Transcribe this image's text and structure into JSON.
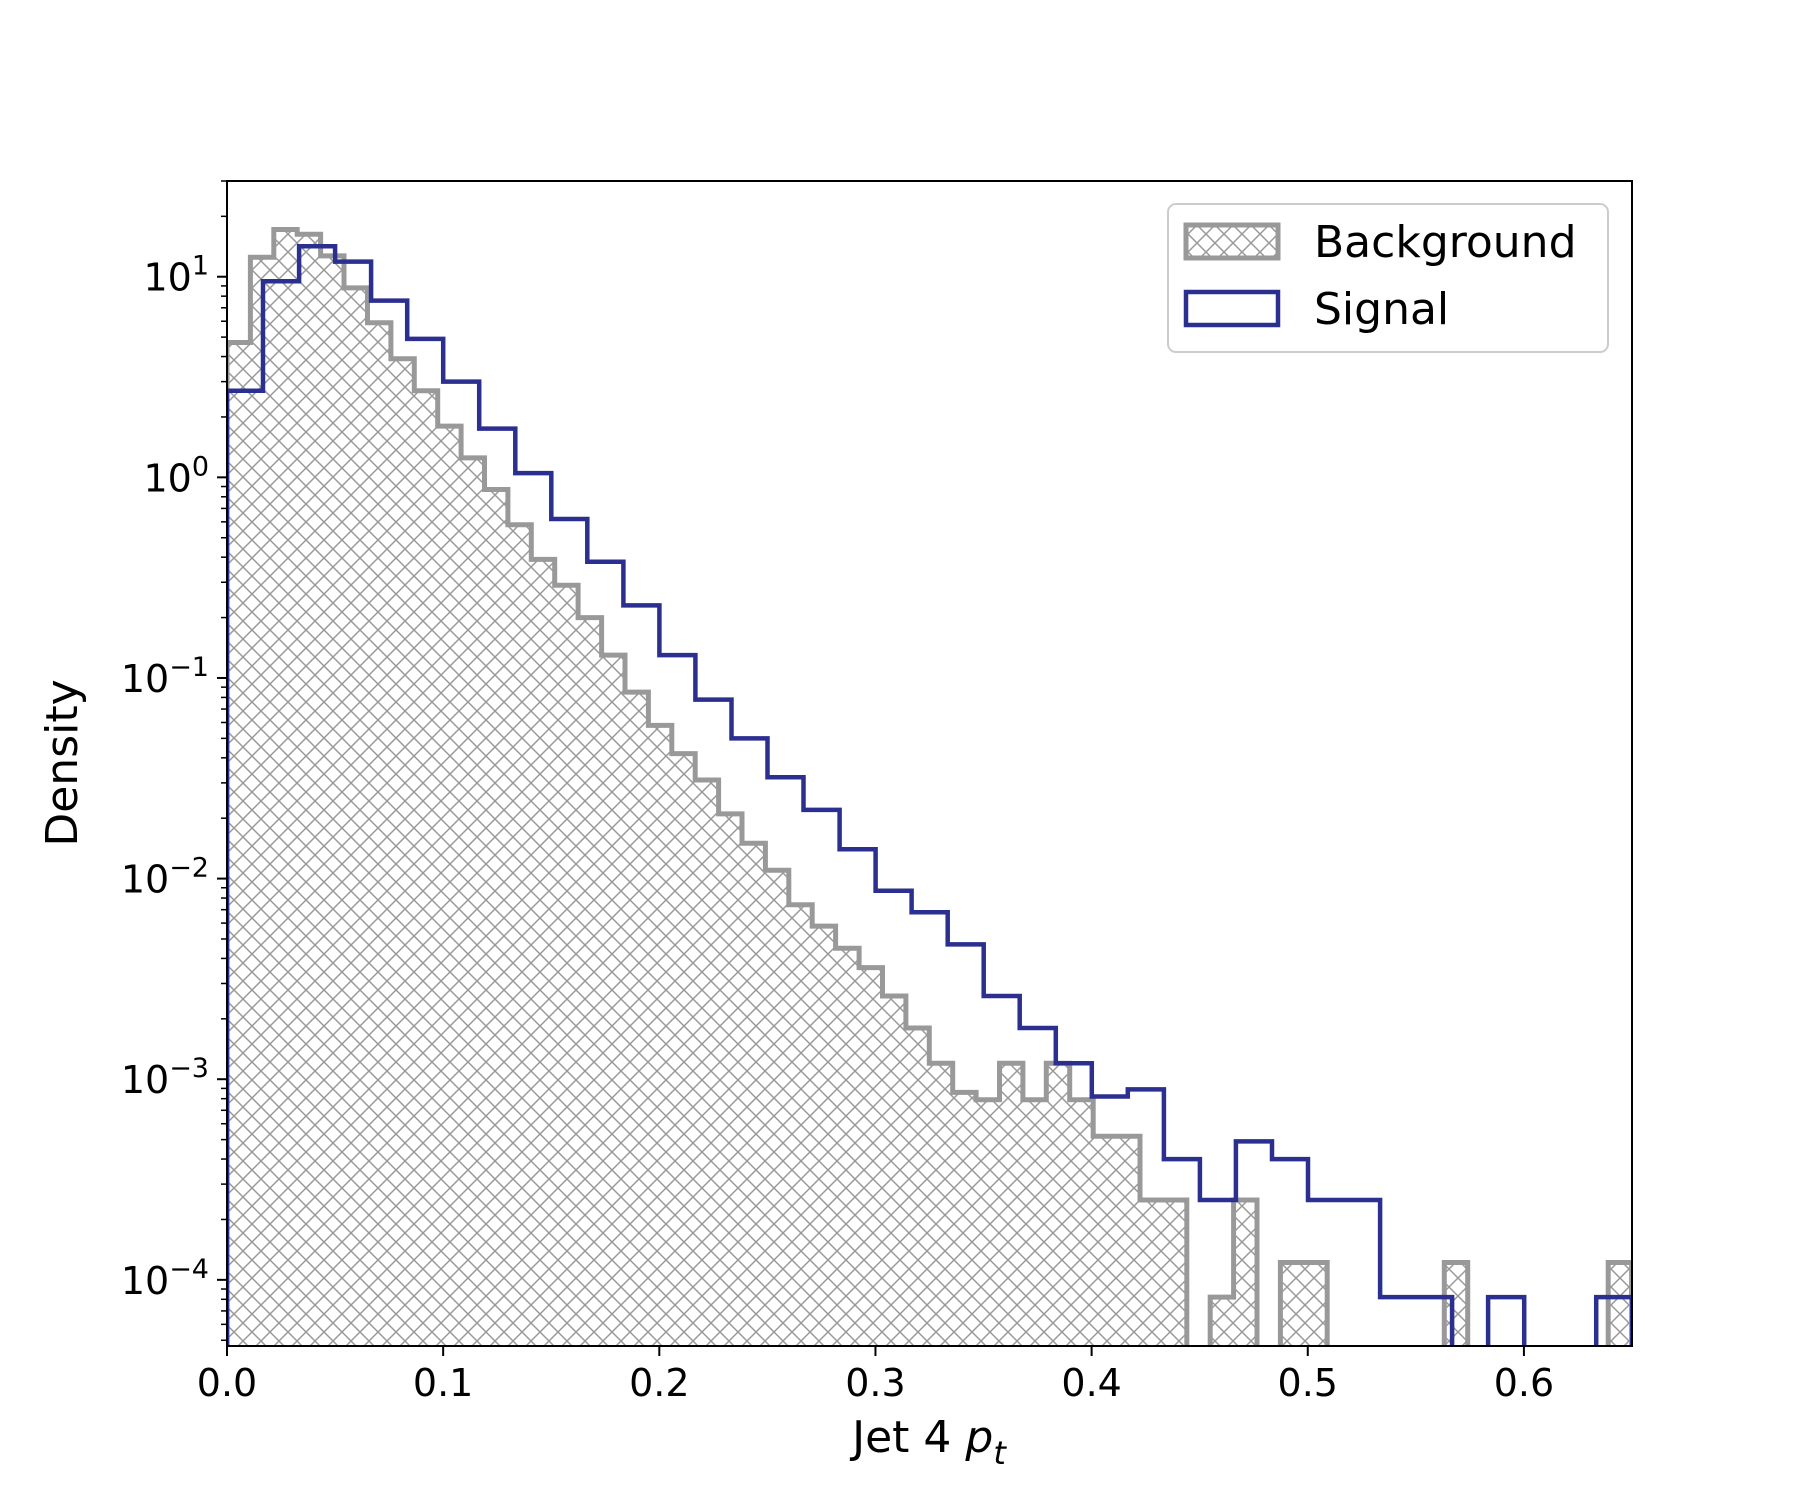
{
  "chart_data": {
    "type": "histogram",
    "scale": {
      "x": "linear",
      "y": "log"
    },
    "xlabel": "Jet 4 p_t",
    "xlabel_parts": {
      "prefix": "Jet 4 ",
      "symbol": "p",
      "subscript": "t"
    },
    "ylabel": "Density",
    "xlim": [
      0.0,
      0.65
    ],
    "ylim": [
      4.68e-05,
      30
    ],
    "x_ticks": [
      0.0,
      0.1,
      0.2,
      0.3,
      0.4,
      0.5,
      0.6
    ],
    "x_tick_labels": [
      "0.0",
      "0.1",
      "0.2",
      "0.3",
      "0.4",
      "0.5",
      "0.6"
    ],
    "y_ticks": [
      {
        "value": 0.0001,
        "base": "10",
        "exp": "−4"
      },
      {
        "value": 0.001,
        "base": "10",
        "exp": "−3"
      },
      {
        "value": 0.01,
        "base": "10",
        "exp": "−2"
      },
      {
        "value": 0.1,
        "base": "10",
        "exp": "−1"
      },
      {
        "value": 1,
        "base": "10",
        "exp": "0"
      },
      {
        "value": 10,
        "base": "10",
        "exp": "1"
      }
    ],
    "legend": {
      "position": "top-right",
      "entries": [
        "Background",
        "Signal"
      ]
    },
    "series": [
      {
        "name": "Background",
        "style": "hatched",
        "color": "#999999",
        "bin_start": 0.0,
        "bin_width": 0.01083,
        "values": [
          4.7,
          12.5,
          17.2,
          16.3,
          12.7,
          8.8,
          5.9,
          3.9,
          2.7,
          1.8,
          1.25,
          0.87,
          0.58,
          0.39,
          0.29,
          0.2,
          0.13,
          0.085,
          0.058,
          0.042,
          0.031,
          0.021,
          0.015,
          0.011,
          0.0074,
          0.0058,
          0.0045,
          0.0036,
          0.0026,
          0.0018,
          0.0012,
          0.00086,
          0.00079,
          0.0012,
          0.00079,
          0.0012,
          0.00079,
          0.00052,
          0.00052,
          0.00025,
          0.00025,
          0.0,
          8.2e-05,
          0.00025,
          0.0,
          0.000122,
          0.000122,
          0.0,
          0.0,
          0.0,
          0.0,
          0.0,
          0.000122,
          0.0,
          0.0,
          0.0,
          0.0,
          0.0,
          0.0,
          0.000122
        ]
      },
      {
        "name": "Signal",
        "style": "step",
        "color": "#2b2f8f",
        "bin_start": 0.0,
        "bin_width": 0.01667,
        "values": [
          2.7,
          9.5,
          14.2,
          11.9,
          7.6,
          4.9,
          3.0,
          1.75,
          1.05,
          0.62,
          0.38,
          0.23,
          0.13,
          0.078,
          0.05,
          0.032,
          0.022,
          0.014,
          0.0087,
          0.0068,
          0.0047,
          0.0026,
          0.0018,
          0.0012,
          0.00082,
          0.00089,
          0.0004,
          0.00025,
          0.00049,
          0.0004,
          0.00025,
          0.00025,
          8.2e-05,
          8.2e-05,
          0.0,
          8.2e-05,
          0.0,
          0.0,
          8.2e-05
        ]
      }
    ]
  }
}
